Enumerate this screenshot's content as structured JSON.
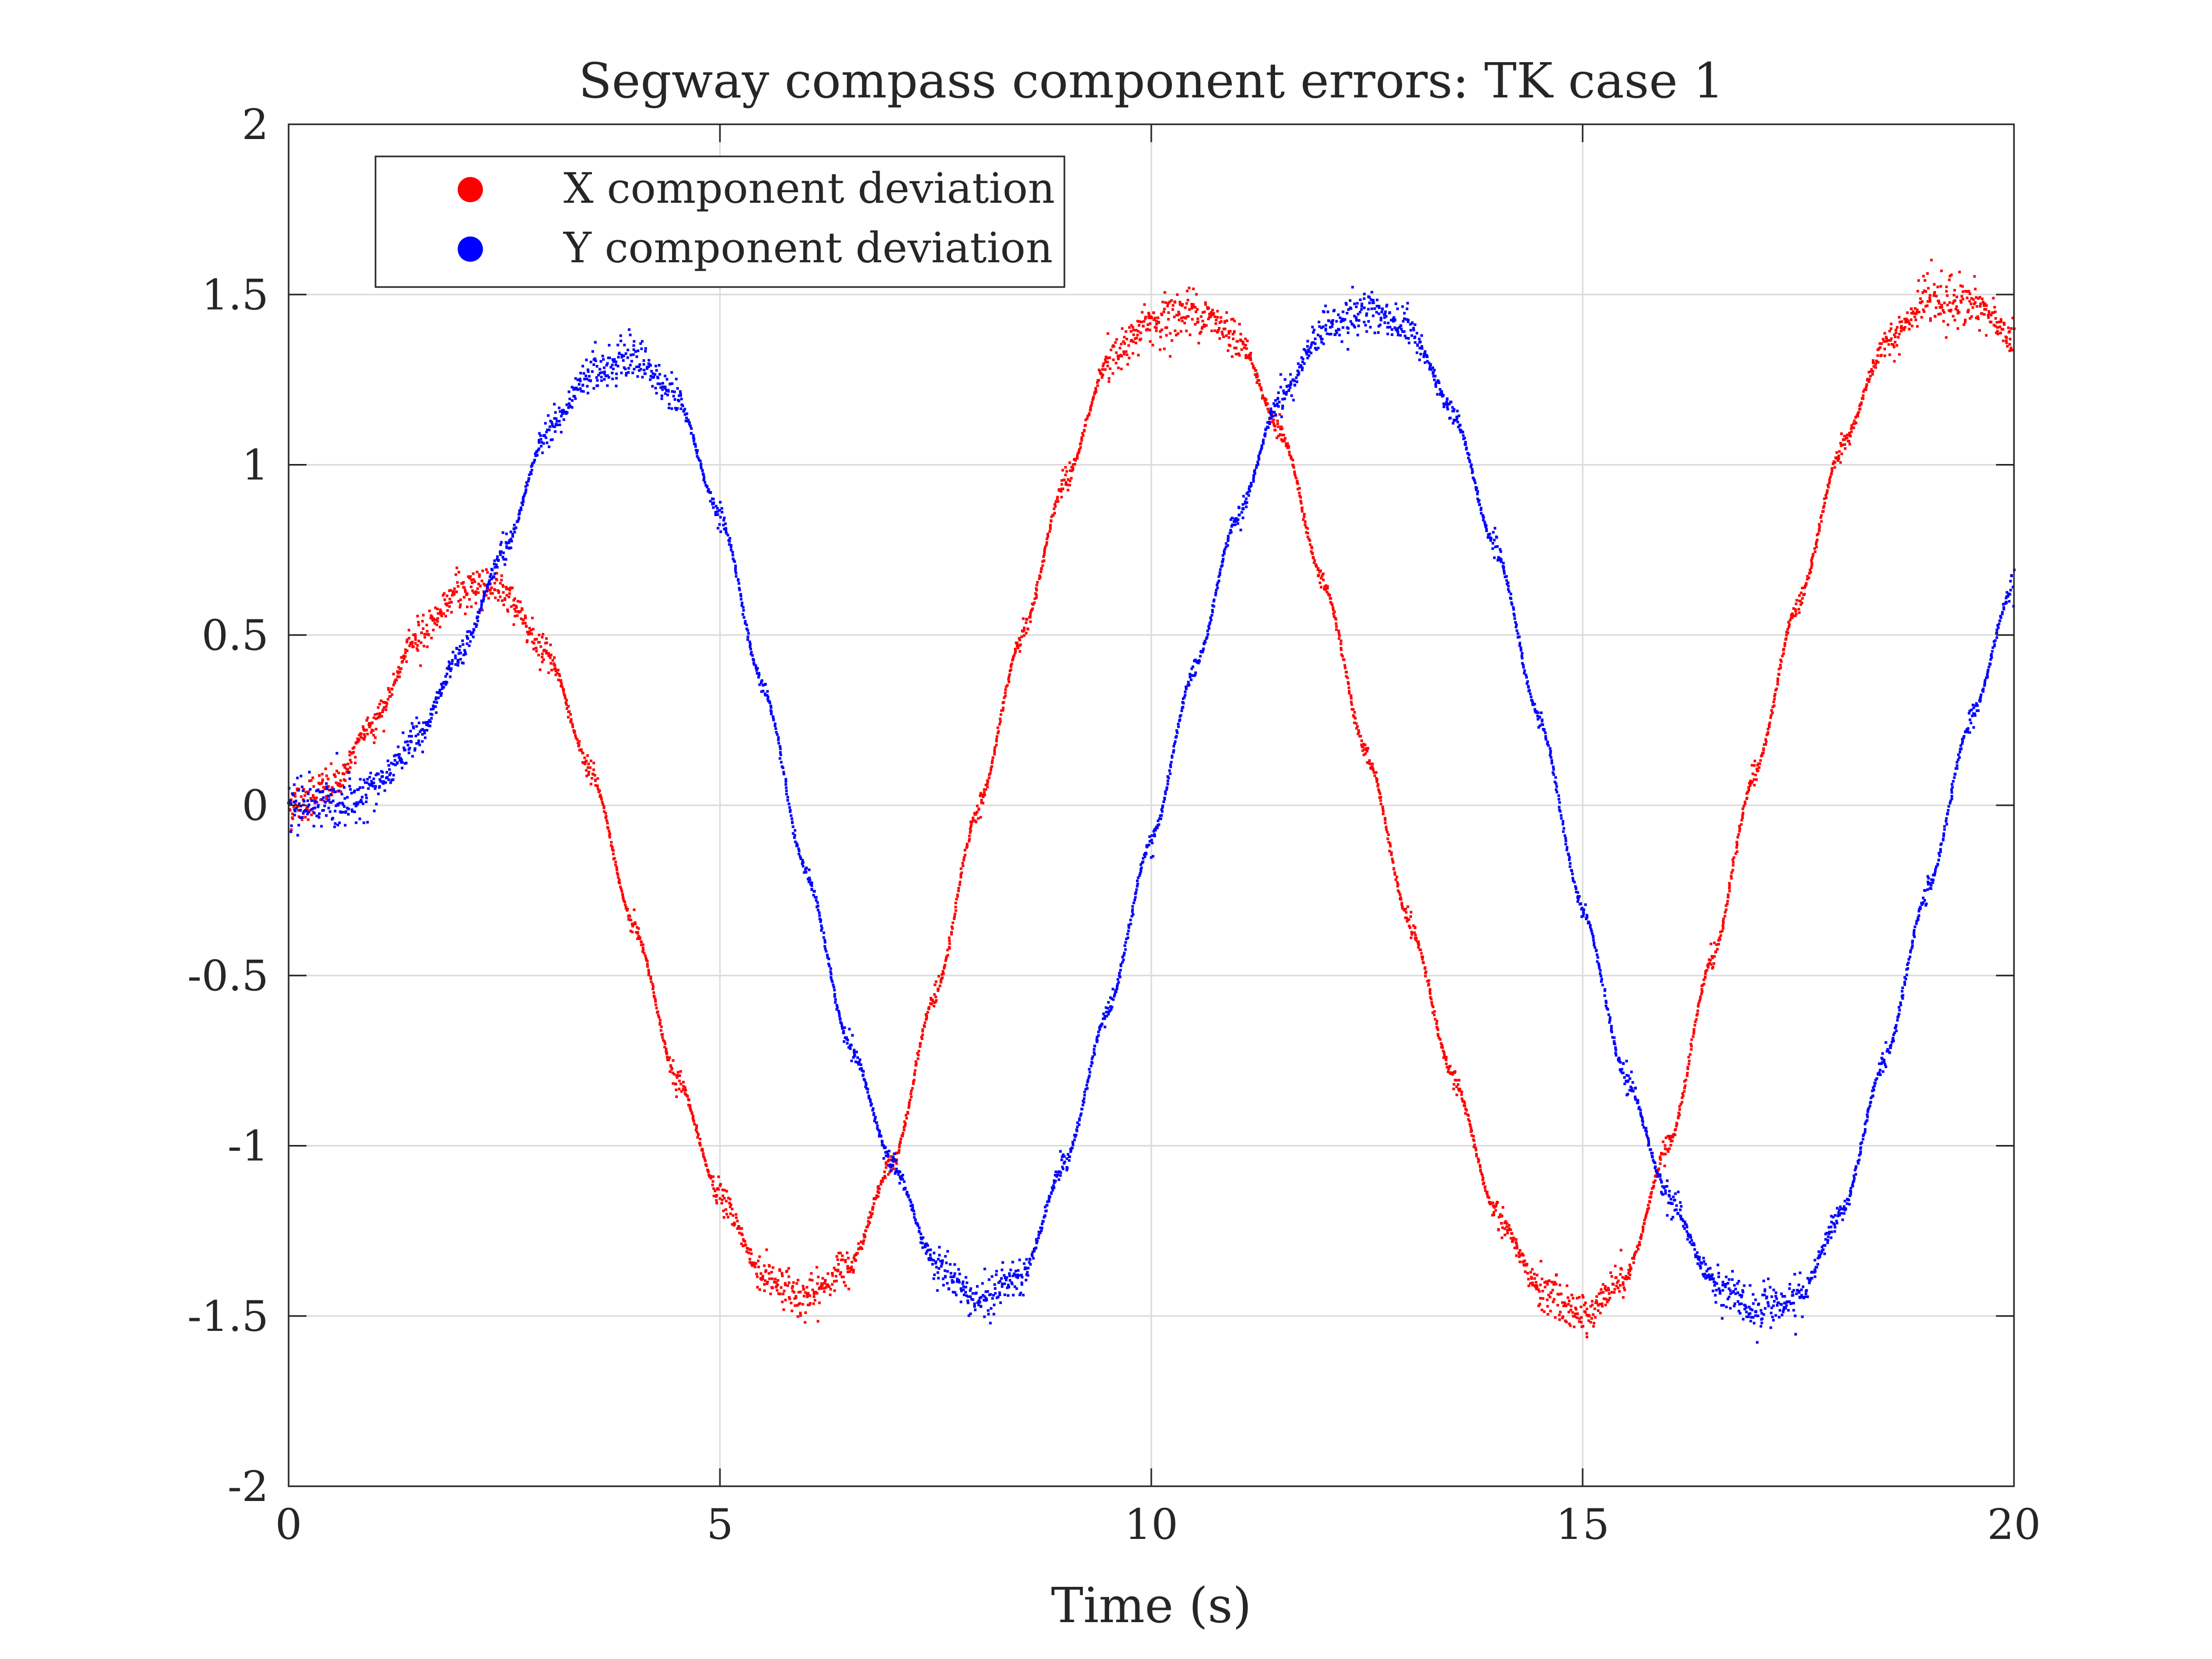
{
  "chart_data": {
    "type": "scatter",
    "title": "Segway compass component errors: TK case 1",
    "xlabel": "Time (s)",
    "ylabel": "",
    "xlim": [
      0,
      20
    ],
    "ylim": [
      -2,
      2
    ],
    "grid": true,
    "legend_position": "top-left",
    "x_ticks": [
      0,
      5,
      10,
      15,
      20
    ],
    "x_tick_labels": [
      "0",
      "5",
      "10",
      "15",
      "20"
    ],
    "y_ticks": [
      -2,
      -1.5,
      -1,
      -0.5,
      0,
      0.5,
      1,
      1.5,
      2
    ],
    "y_tick_labels": [
      "-2",
      "-1.5",
      "-1",
      "-0.5",
      "0",
      "0.5",
      "1",
      "1.5",
      "2"
    ],
    "series": [
      {
        "name": "X component deviation",
        "color": "#ff0000",
        "x": [
          0,
          0.5,
          1,
          1.5,
          2,
          2.3,
          2.5,
          3,
          3.5,
          4,
          4.5,
          5,
          5.5,
          6,
          6.5,
          7,
          7.5,
          8,
          8.5,
          9,
          9.5,
          10,
          10.5,
          11,
          11.5,
          12,
          12.5,
          13,
          13.5,
          14,
          14.5,
          15,
          15.5,
          16,
          16.5,
          17,
          17.5,
          18,
          18.5,
          19,
          19.5,
          20
        ],
        "y": [
          0,
          0.05,
          0.25,
          0.5,
          0.63,
          0.65,
          0.62,
          0.45,
          0.1,
          -0.35,
          -0.8,
          -1.15,
          -1.38,
          -1.45,
          -1.35,
          -1.05,
          -0.55,
          0,
          0.5,
          0.95,
          1.3,
          1.42,
          1.45,
          1.38,
          1.1,
          0.65,
          0.15,
          -0.35,
          -0.8,
          -1.2,
          -1.42,
          -1.5,
          -1.38,
          -1.0,
          -0.45,
          0.1,
          0.6,
          1.05,
          1.35,
          1.48,
          1.48,
          1.37
        ]
      },
      {
        "name": "Y component deviation",
        "color": "#0000ff",
        "x": [
          0,
          0.5,
          1,
          1.5,
          2,
          2.5,
          3,
          3.5,
          4,
          4.5,
          5,
          5.5,
          6,
          6.5,
          7,
          7.5,
          8,
          8.5,
          9,
          9.5,
          10,
          10.5,
          11,
          11.5,
          12,
          12.5,
          13,
          13.5,
          14,
          14.5,
          15,
          15.5,
          16,
          16.5,
          17,
          17.5,
          18,
          18.5,
          19,
          19.5,
          20
        ],
        "y": [
          0,
          0,
          0.05,
          0.2,
          0.45,
          0.75,
          1.1,
          1.27,
          1.32,
          1.2,
          0.85,
          0.35,
          -0.2,
          -0.7,
          -1.05,
          -1.35,
          -1.45,
          -1.38,
          -1.05,
          -0.6,
          -0.1,
          0.4,
          0.85,
          1.2,
          1.4,
          1.46,
          1.4,
          1.15,
          0.75,
          0.25,
          -0.3,
          -0.8,
          -1.15,
          -1.4,
          -1.48,
          -1.45,
          -1.2,
          -0.75,
          -0.25,
          0.25,
          0.65
        ]
      }
    ]
  }
}
